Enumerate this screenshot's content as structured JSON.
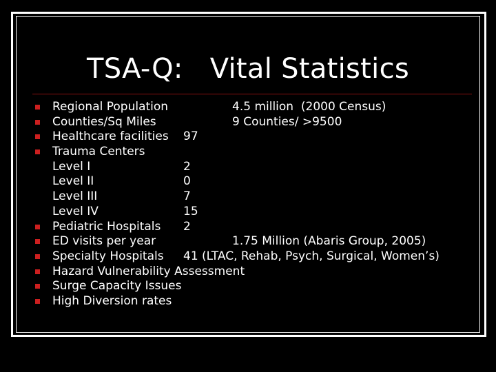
{
  "slide": {
    "title": "TSA-Q:   Vital Statistics",
    "colors": {
      "background": "#000000",
      "text": "#ffffff",
      "bullet": "#cc1f1f",
      "rule": "#8a1010",
      "frame": "#ffffff"
    },
    "rows": [
      {
        "bullet": true,
        "label": "Regional Population",
        "value": "",
        "note": "4.5 million  (2000 Census)"
      },
      {
        "bullet": true,
        "label": "Counties/Sq Miles",
        "value": "",
        "note": "9 Counties/ >9500"
      },
      {
        "bullet": true,
        "label": "Healthcare facilities",
        "value": "97",
        "note": ""
      },
      {
        "bullet": true,
        "label": "Trauma Centers",
        "value": "",
        "note": ""
      },
      {
        "bullet": false,
        "label": "Level I",
        "value": "2",
        "note": ""
      },
      {
        "bullet": false,
        "label": "Level II",
        "value": "0",
        "note": ""
      },
      {
        "bullet": false,
        "label": "Level III",
        "value": "7",
        "note": ""
      },
      {
        "bullet": false,
        "label": "Level IV",
        "value": "15",
        "note": ""
      },
      {
        "bullet": true,
        "label": "Pediatric Hospitals",
        "value": "2",
        "note": ""
      },
      {
        "bullet": true,
        "label": "ED visits per year",
        "value": "",
        "note": "1.75 Million (Abaris Group, 2005)"
      },
      {
        "bullet": true,
        "label": "Specialty Hospitals",
        "value": "41 (LTAC, Rehab, Psych, Surgical, Women’s)",
        "note": ""
      },
      {
        "bullet": true,
        "label": "Hazard Vulnerability Assessment",
        "value": "",
        "note": ""
      },
      {
        "bullet": true,
        "label": "Surge Capacity Issues",
        "value": "",
        "note": ""
      },
      {
        "bullet": true,
        "label": "High Diversion rates",
        "value": "",
        "note": ""
      }
    ]
  }
}
